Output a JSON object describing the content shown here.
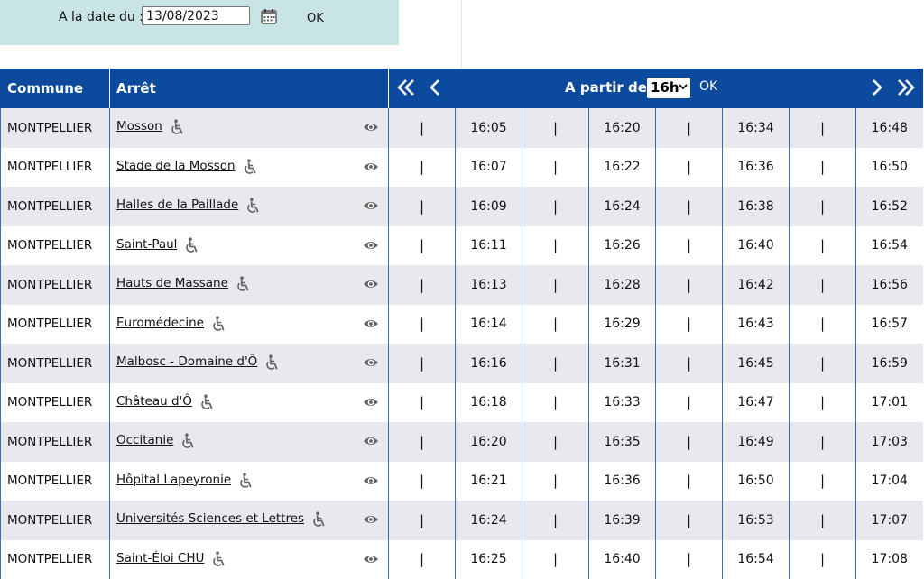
{
  "date_form": {
    "label": "A la date du :",
    "date_value": "13/08/2023",
    "ok_label": "OK"
  },
  "table": {
    "headers": {
      "commune": "Commune",
      "arret": "Arrêt",
      "a_partir_de": "A partir de :",
      "hour_selected": "16h",
      "ok_label": "OK"
    },
    "separator": "|",
    "rows": [
      {
        "commune": "MONTPELLIER",
        "stop": "Mosson",
        "times": [
          "16:05",
          "16:20",
          "16:34",
          "16:48"
        ]
      },
      {
        "commune": "MONTPELLIER",
        "stop": "Stade de la Mosson",
        "times": [
          "16:07",
          "16:22",
          "16:36",
          "16:50"
        ]
      },
      {
        "commune": "MONTPELLIER",
        "stop": "Halles de la Paillade",
        "times": [
          "16:09",
          "16:24",
          "16:38",
          "16:52"
        ]
      },
      {
        "commune": "MONTPELLIER",
        "stop": "Saint-Paul",
        "times": [
          "16:11",
          "16:26",
          "16:40",
          "16:54"
        ]
      },
      {
        "commune": "MONTPELLIER",
        "stop": "Hauts de Massane",
        "times": [
          "16:13",
          "16:28",
          "16:42",
          "16:56"
        ]
      },
      {
        "commune": "MONTPELLIER",
        "stop": "Euromédecine",
        "times": [
          "16:14",
          "16:29",
          "16:43",
          "16:57"
        ]
      },
      {
        "commune": "MONTPELLIER",
        "stop": "Malbosc - Domaine d'Ô",
        "times": [
          "16:16",
          "16:31",
          "16:45",
          "16:59"
        ]
      },
      {
        "commune": "MONTPELLIER",
        "stop": "Château d'Ô",
        "times": [
          "16:18",
          "16:33",
          "16:47",
          "17:01"
        ]
      },
      {
        "commune": "MONTPELLIER",
        "stop": "Occitanie",
        "times": [
          "16:20",
          "16:35",
          "16:49",
          "17:03"
        ]
      },
      {
        "commune": "MONTPELLIER",
        "stop": "Hôpital Lapeyronie",
        "times": [
          "16:21",
          "16:36",
          "16:50",
          "17:04"
        ]
      },
      {
        "commune": "MONTPELLIER",
        "stop": "Universités Sciences et Lettres",
        "times": [
          "16:24",
          "16:39",
          "16:53",
          "17:07"
        ]
      },
      {
        "commune": "MONTPELLIER",
        "stop": "Saint-Éloi CHU",
        "times": [
          "16:25",
          "16:40",
          "16:54",
          "17:08"
        ]
      }
    ]
  },
  "icons": {
    "calendar": "calendar-icon",
    "wheelchair": "wheelchair-accessible-icon",
    "eye": "eye-icon",
    "first": "double-chevron-left-icon",
    "prev": "chevron-left-icon",
    "next": "chevron-right-icon",
    "last": "double-chevron-right-icon"
  },
  "colors": {
    "header_bg": "#0b4a9c",
    "date_panel_bg": "#c8e4e4",
    "row_alt_bg": "#e7e9ee"
  }
}
